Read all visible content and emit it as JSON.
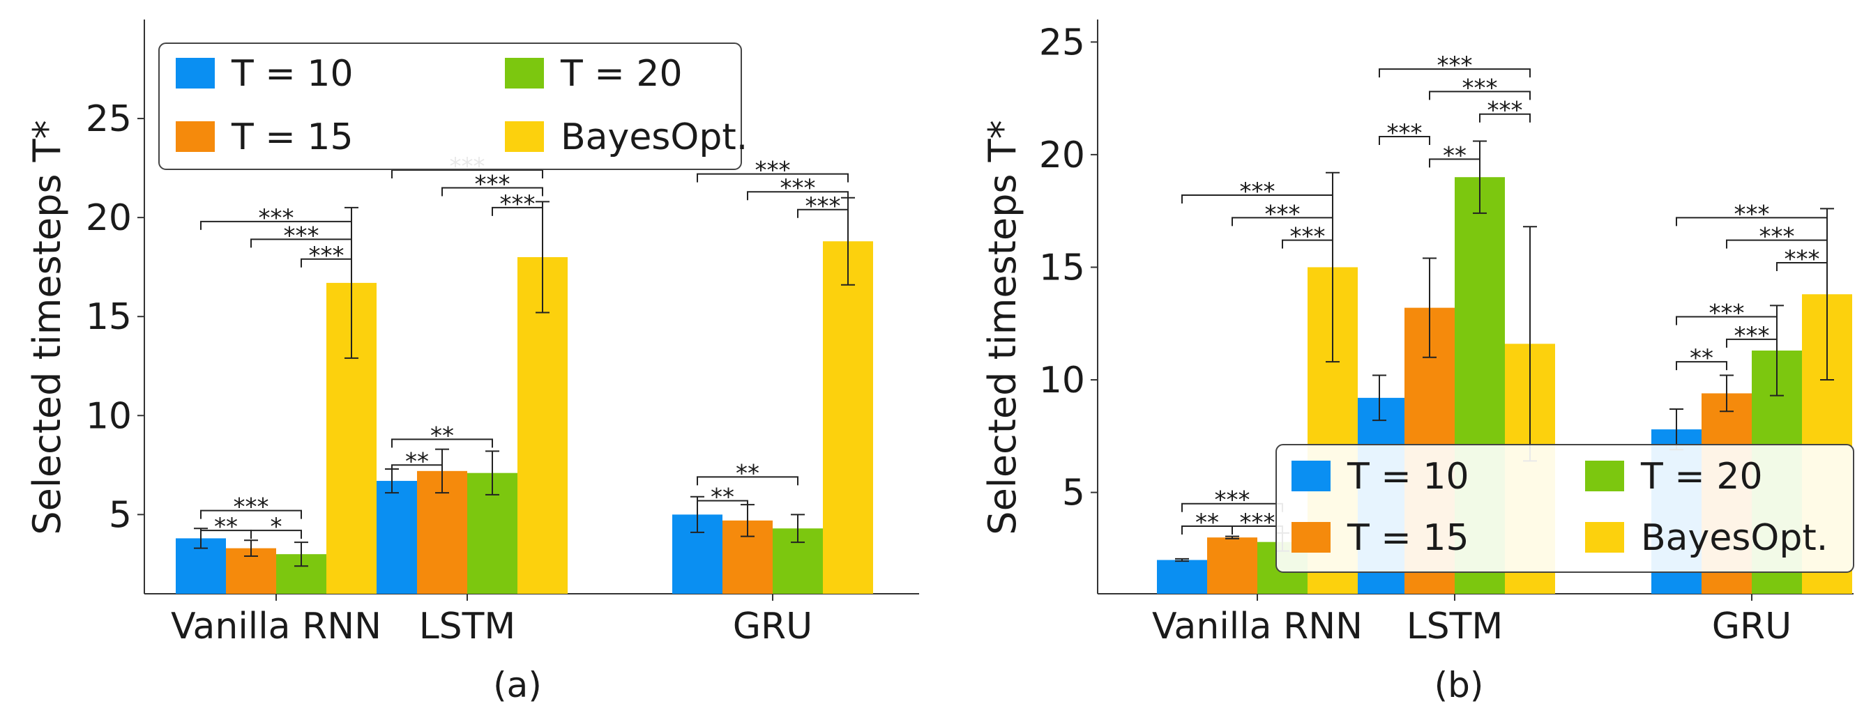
{
  "chart_data": [
    {
      "panel_label": "(a)",
      "type": "bar",
      "ylabel": "Selected timesteps T*",
      "categories": [
        "Vanilla RNN",
        "LSTM",
        "GRU"
      ],
      "yticks": [
        "5",
        "10",
        "15",
        "20",
        "25"
      ],
      "ylim": [
        1,
        30
      ],
      "legend_placement": "top-left",
      "legend": [
        "T = 10",
        "T = 15",
        "T = 20",
        "BayesOpt."
      ],
      "series": [
        {
          "name": "T = 10",
          "color": "#0a8ff2",
          "values": [
            3.8,
            6.7,
            5.0
          ],
          "errors": [
            0.5,
            0.6,
            0.9
          ]
        },
        {
          "name": "T = 15",
          "color": "#f58a0c",
          "values": [
            3.3,
            7.2,
            4.7
          ],
          "errors": [
            0.4,
            1.1,
            0.8
          ]
        },
        {
          "name": "T = 20",
          "color": "#7cc70f",
          "values": [
            3.0,
            7.1,
            4.3
          ],
          "errors": [
            0.6,
            1.1,
            0.7
          ]
        },
        {
          "name": "BayesOpt.",
          "color": "#fcd10d",
          "values": [
            16.7,
            18.0,
            18.8
          ],
          "errors": [
            3.8,
            2.8,
            2.2
          ]
        }
      ],
      "significance": [
        {
          "category": 0,
          "from": 0,
          "to": 1,
          "y": 4.2,
          "label": "**"
        },
        {
          "category": 0,
          "from": 0,
          "to": 2,
          "y": 5.2,
          "label": "***"
        },
        {
          "category": 0,
          "from": 1,
          "to": 2,
          "y": 4.2,
          "label": "*"
        },
        {
          "category": 0,
          "from": 0,
          "to": 3,
          "y": 19.8,
          "label": "***"
        },
        {
          "category": 0,
          "from": 1,
          "to": 3,
          "y": 18.9,
          "label": "***"
        },
        {
          "category": 0,
          "from": 2,
          "to": 3,
          "y": 17.9,
          "label": "***"
        },
        {
          "category": 1,
          "from": 0,
          "to": 1,
          "y": 7.5,
          "label": "**"
        },
        {
          "category": 1,
          "from": 0,
          "to": 2,
          "y": 8.8,
          "label": "**"
        },
        {
          "category": 1,
          "from": 0,
          "to": 3,
          "y": 22.4,
          "label": "***"
        },
        {
          "category": 1,
          "from": 1,
          "to": 3,
          "y": 21.5,
          "label": "***"
        },
        {
          "category": 1,
          "from": 2,
          "to": 3,
          "y": 20.5,
          "label": "***"
        },
        {
          "category": 2,
          "from": 0,
          "to": 1,
          "y": 5.7,
          "label": "**"
        },
        {
          "category": 2,
          "from": 0,
          "to": 2,
          "y": 6.9,
          "label": "**"
        },
        {
          "category": 2,
          "from": 0,
          "to": 3,
          "y": 22.2,
          "label": "***"
        },
        {
          "category": 2,
          "from": 1,
          "to": 3,
          "y": 21.3,
          "label": "***"
        },
        {
          "category": 2,
          "from": 2,
          "to": 3,
          "y": 20.4,
          "label": "***"
        }
      ]
    },
    {
      "panel_label": "(b)",
      "type": "bar",
      "ylabel": "Selected timesteps T*",
      "categories": [
        "Vanilla RNN",
        "LSTM",
        "GRU"
      ],
      "yticks": [
        "5",
        "10",
        "15",
        "20",
        "25"
      ],
      "ylim": [
        0.5,
        26
      ],
      "legend_placement": "bottom-right",
      "legend": [
        "T = 10",
        "T = 15",
        "T = 20",
        "BayesOpt."
      ],
      "series": [
        {
          "name": "T = 10",
          "color": "#0a8ff2",
          "values": [
            2.0,
            9.2,
            7.8
          ],
          "errors": [
            0.05,
            1.0,
            0.9
          ]
        },
        {
          "name": "T = 15",
          "color": "#f58a0c",
          "values": [
            3.0,
            13.2,
            9.4
          ],
          "errors": [
            0.05,
            2.2,
            0.8
          ]
        },
        {
          "name": "T = 20",
          "color": "#7cc70f",
          "values": [
            2.8,
            19.0,
            11.3
          ],
          "errors": [
            0.4,
            1.6,
            2.0
          ]
        },
        {
          "name": "BayesOpt.",
          "color": "#fcd10d",
          "values": [
            15.0,
            11.6,
            13.8
          ],
          "errors": [
            4.2,
            5.2,
            3.8
          ]
        }
      ],
      "significance": [
        {
          "category": 0,
          "from": 0,
          "to": 1,
          "y": 3.5,
          "label": "**"
        },
        {
          "category": 0,
          "from": 0,
          "to": 2,
          "y": 4.5,
          "label": "***"
        },
        {
          "category": 0,
          "from": 1,
          "to": 2,
          "y": 3.5,
          "label": "***"
        },
        {
          "category": 0,
          "from": 0,
          "to": 3,
          "y": 18.2,
          "label": "***"
        },
        {
          "category": 0,
          "from": 1,
          "to": 3,
          "y": 17.2,
          "label": "***"
        },
        {
          "category": 0,
          "from": 2,
          "to": 3,
          "y": 16.2,
          "label": "***"
        },
        {
          "category": 1,
          "from": 0,
          "to": 1,
          "y": 20.8,
          "label": "***"
        },
        {
          "category": 1,
          "from": 1,
          "to": 2,
          "y": 19.8,
          "label": "**"
        },
        {
          "category": 1,
          "from": 0,
          "to": 3,
          "y": 23.8,
          "label": "***"
        },
        {
          "category": 1,
          "from": 1,
          "to": 3,
          "y": 22.8,
          "label": "***"
        },
        {
          "category": 1,
          "from": 2,
          "to": 3,
          "y": 21.8,
          "label": "***"
        },
        {
          "category": 2,
          "from": 0,
          "to": 1,
          "y": 10.8,
          "label": "**"
        },
        {
          "category": 2,
          "from": 0,
          "to": 2,
          "y": 12.8,
          "label": "***"
        },
        {
          "category": 2,
          "from": 1,
          "to": 2,
          "y": 11.8,
          "label": "***"
        },
        {
          "category": 2,
          "from": 0,
          "to": 3,
          "y": 17.2,
          "label": "***"
        },
        {
          "category": 2,
          "from": 1,
          "to": 3,
          "y": 16.2,
          "label": "***"
        },
        {
          "category": 2,
          "from": 2,
          "to": 3,
          "y": 15.2,
          "label": "***"
        }
      ]
    }
  ]
}
